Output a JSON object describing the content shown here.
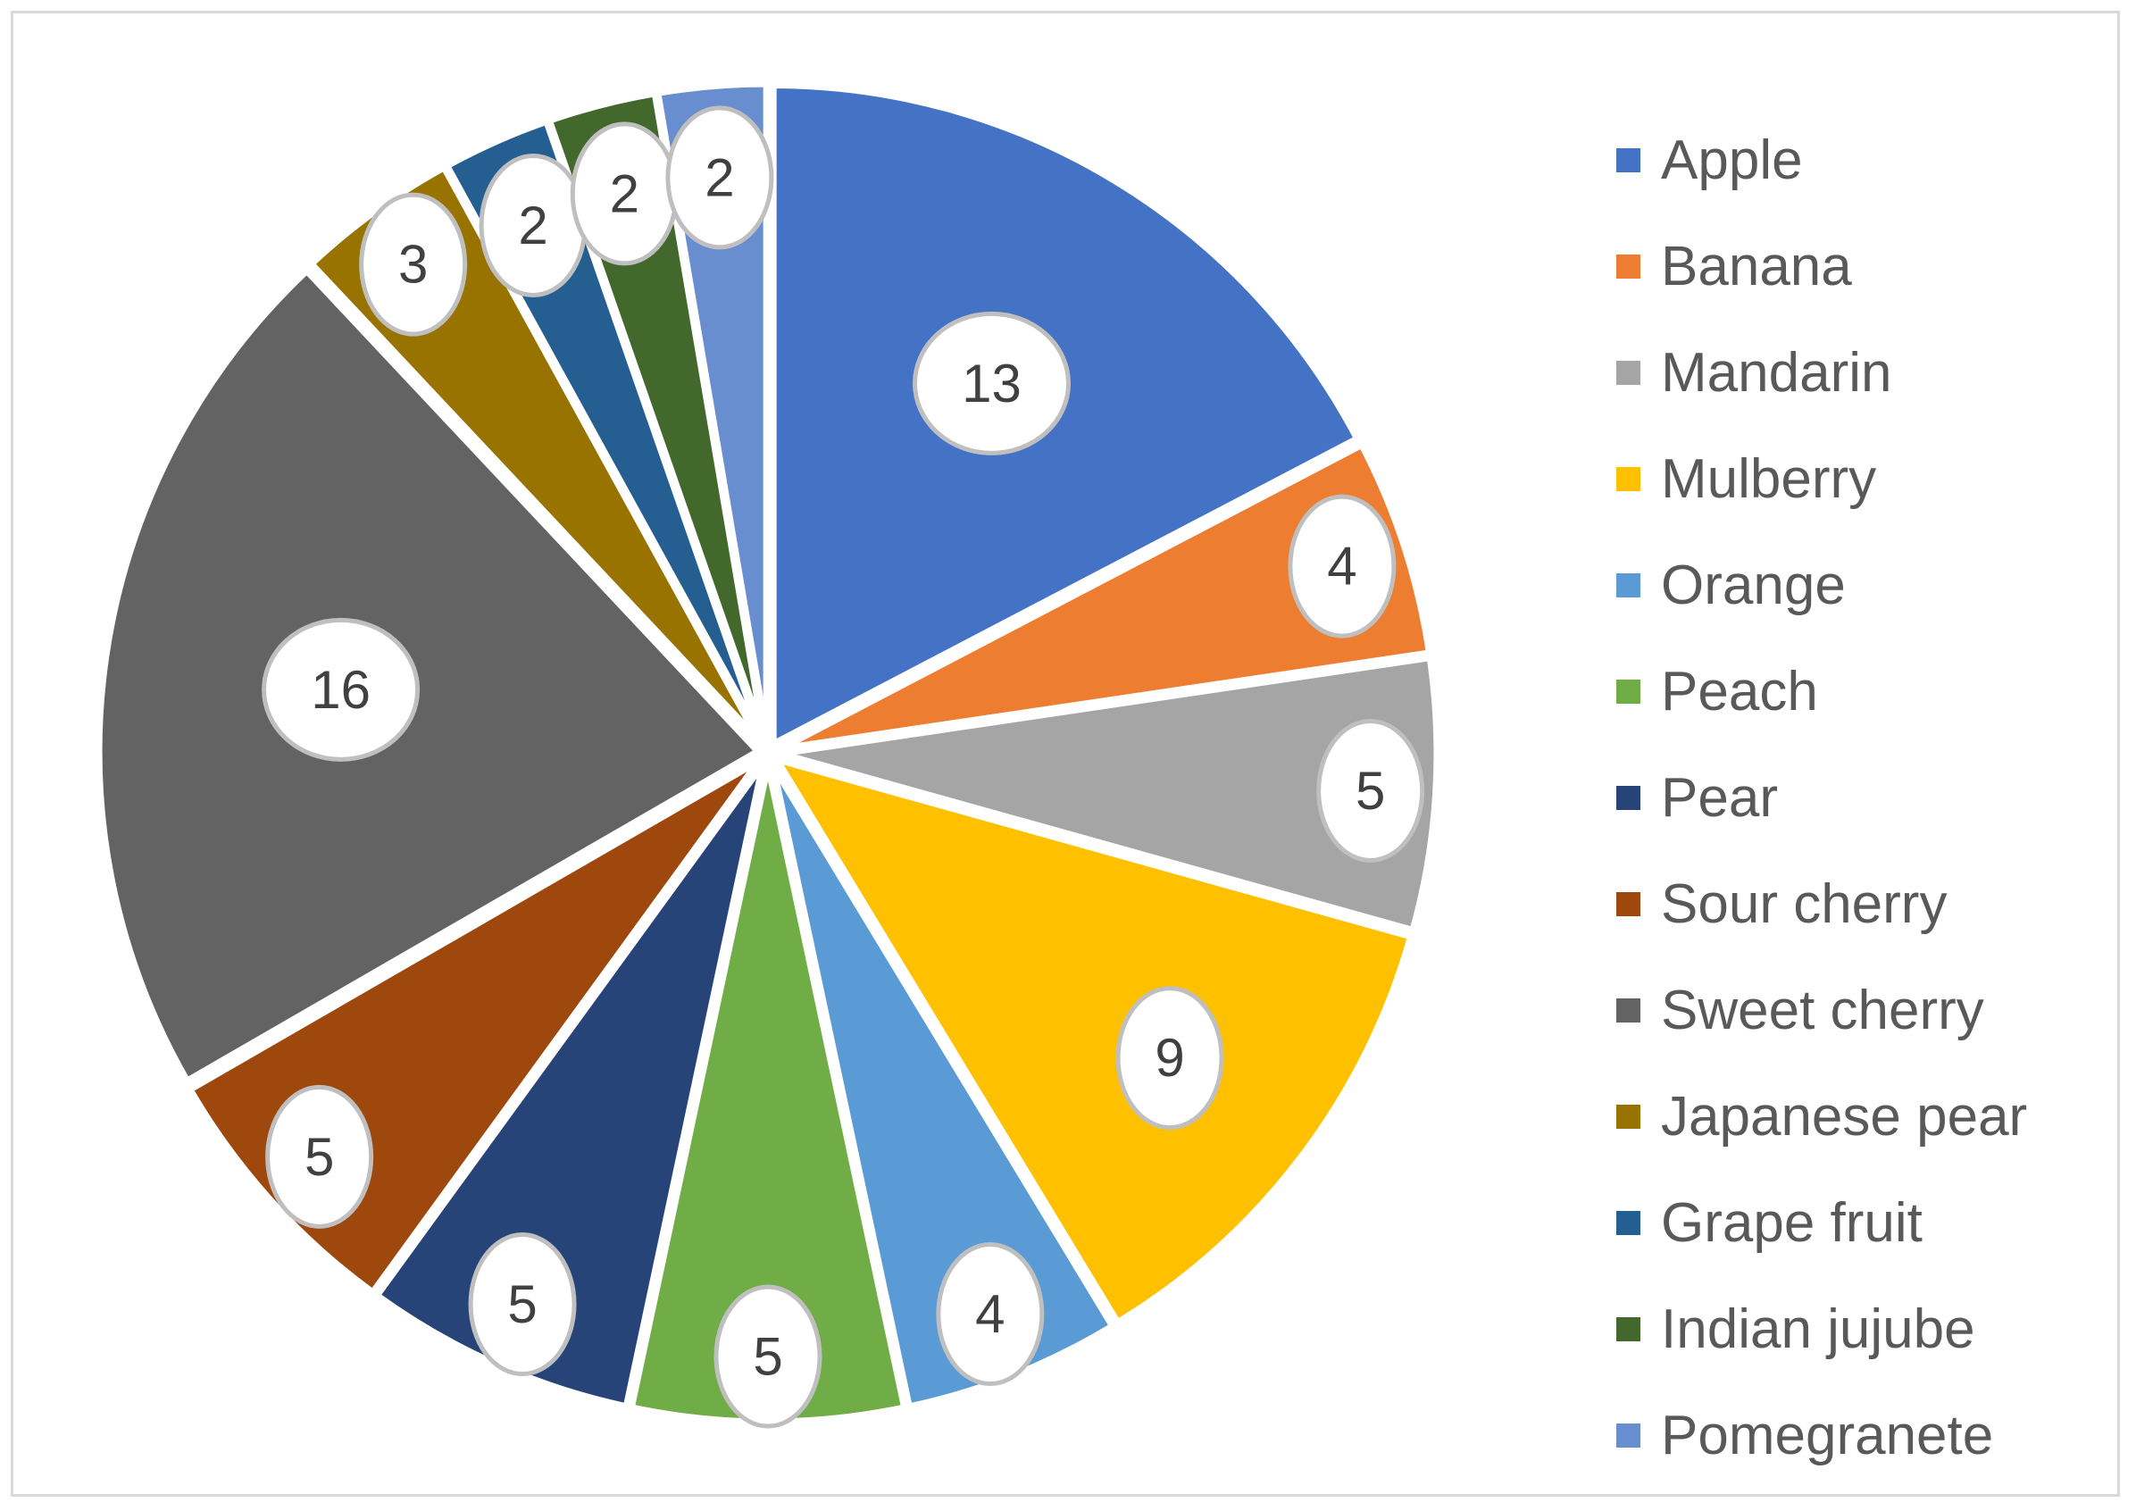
{
  "chart_data": {
    "type": "pie",
    "title": "",
    "categories": [
      "Apple",
      "Banana",
      "Mandarin",
      "Mulberry",
      "Orange",
      "Peach",
      "Pear",
      "Sour cherry",
      "Sweet cherry",
      "Japanese pear",
      "Grape fruit",
      "Indian jujube",
      "Pomegranete"
    ],
    "values": [
      13,
      4,
      5,
      9,
      4,
      5,
      5,
      5,
      16,
      3,
      2,
      2,
      2
    ],
    "colors": [
      "#4472C4",
      "#ED7D31",
      "#A5A5A5",
      "#FFC000",
      "#5B9BD5",
      "#70AD47",
      "#264478",
      "#9E480E",
      "#636363",
      "#997300",
      "#255E91",
      "#43682B",
      "#698ED0"
    ],
    "data_labels": true,
    "legend_position": "right",
    "start_angle": "12 o'clock, clockwise"
  }
}
